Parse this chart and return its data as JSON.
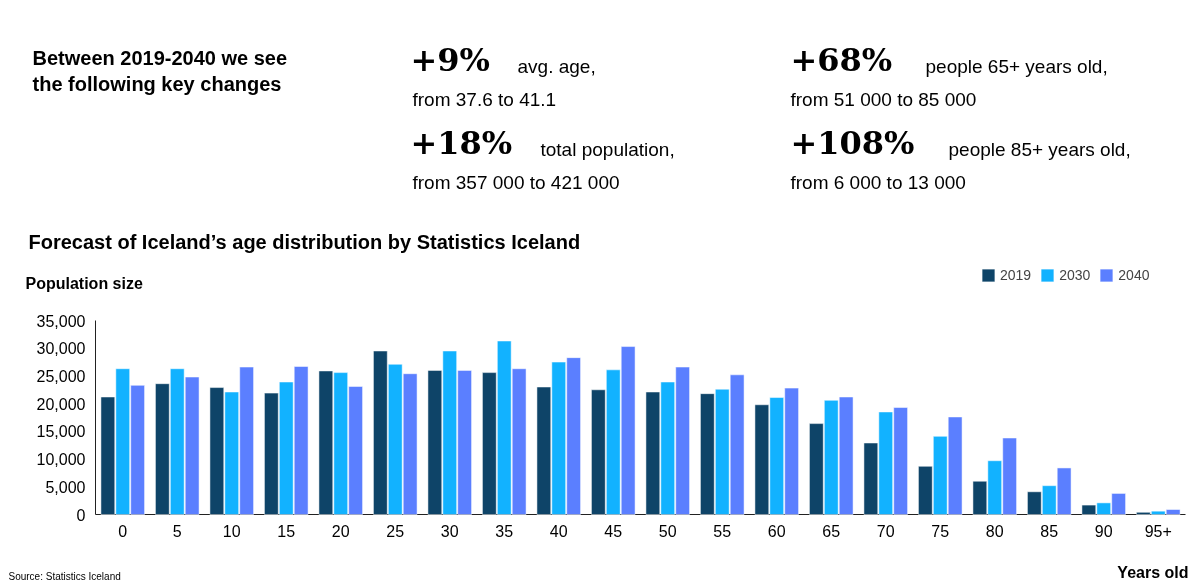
{
  "chart_data": {
    "type": "bar",
    "title": "Forecast of Iceland’s age distribution by Statistics Iceland",
    "ylabel": "Population size",
    "xlabel": "Years old",
    "categories": [
      "0",
      "5",
      "10",
      "15",
      "20",
      "25",
      "30",
      "35",
      "40",
      "45",
      "50",
      "55",
      "60",
      "65",
      "70",
      "75",
      "80",
      "85",
      "90",
      "95+"
    ],
    "series": [
      {
        "name": "2019",
        "color": "#0e4468",
        "values": [
          21200,
          23600,
          22900,
          21900,
          25900,
          29500,
          26000,
          25600,
          23000,
          22500,
          22100,
          21800,
          19800,
          16400,
          12900,
          8700,
          6000,
          4100,
          1700,
          400
        ]
      },
      {
        "name": "2030",
        "color": "#12b2ff",
        "values": [
          26300,
          26300,
          22100,
          23900,
          25600,
          27100,
          29500,
          31300,
          27500,
          26100,
          23900,
          22600,
          21100,
          20600,
          18500,
          14100,
          9700,
          5200,
          2100,
          600
        ]
      },
      {
        "name": "2040",
        "color": "#5b7fff",
        "values": [
          23300,
          24800,
          26600,
          26700,
          23100,
          25400,
          26000,
          26300,
          28300,
          30300,
          26600,
          25200,
          22800,
          21200,
          19300,
          17600,
          13800,
          8400,
          3800,
          900
        ]
      }
    ],
    "ylim": [
      0,
      35000
    ],
    "yticks": [
      0,
      {
        "value": 5000,
        "label": "5,000"
      },
      {
        "value": 10000,
        "label": "10,000"
      },
      {
        "value": 15000,
        "label": "15,000"
      },
      {
        "value": 20000,
        "label": "20,000"
      },
      {
        "value": 25000,
        "label": "25,000"
      },
      {
        "value": 30000,
        "label": "30,000"
      },
      {
        "value": 35000,
        "label": "35,000"
      }
    ],
    "grid": false,
    "legend": "top right",
    "annotations": [
      "Between 2019-2040 we see\nthe following key changes",
      "+9%",
      "avg. age,",
      "from 37.6 to 41.1",
      "+18%",
      "total population,",
      "from 357 000 to 421 000",
      "+68%",
      "people 65+ years old,",
      "from 51 000 to 85 000",
      "+108%",
      "people 85+ years old,",
      "from 6 000 to 13 000",
      "Source: Statistics Iceland"
    ]
  }
}
